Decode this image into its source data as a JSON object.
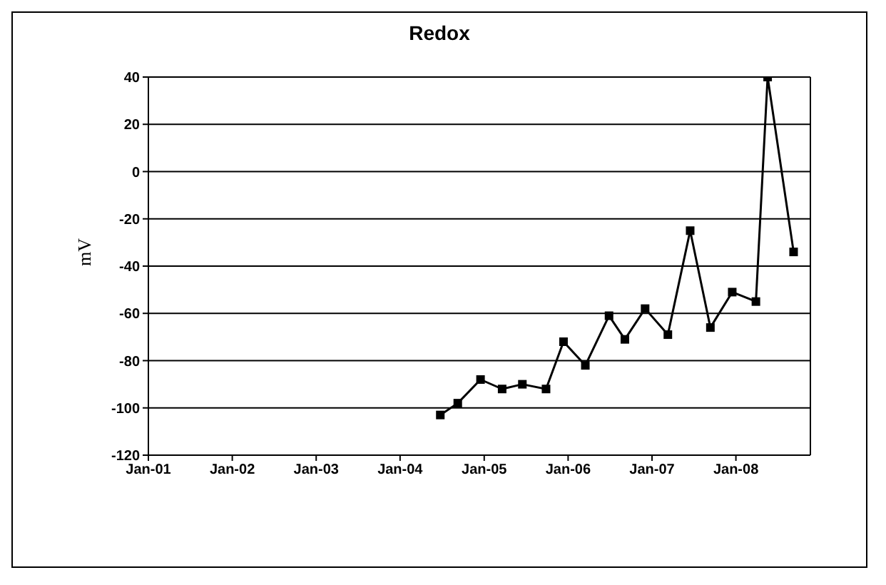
{
  "chart_data": {
    "type": "line",
    "title": "Redox",
    "ylabel": "mV",
    "x": [
      "2004-06-24",
      "2004-09-08",
      "2004-12-16",
      "2005-03-20",
      "2005-06-16",
      "2005-09-27",
      "2005-12-12",
      "2006-03-17",
      "2006-06-28",
      "2006-09-05",
      "2006-12-02",
      "2007-03-11",
      "2007-06-16",
      "2007-09-12",
      "2007-12-16",
      "2008-03-28",
      "2008-05-18",
      "2008-09-08"
    ],
    "series": [
      {
        "color": "#000000",
        "values": [
          -103,
          -98,
          -88,
          -92,
          -90,
          -92,
          -72,
          -82,
          -61,
          -71,
          -58,
          -69,
          -25,
          -66,
          -51,
          -55,
          40,
          -34
        ]
      }
    ],
    "xlim": [
      "2001-01-01",
      "2008-11-20"
    ],
    "xticks": [
      {
        "value": "2001-01",
        "label": "Jan-01"
      },
      {
        "value": "2002-01",
        "label": "Jan-02"
      },
      {
        "value": "2003-01",
        "label": "Jan-03"
      },
      {
        "value": "2004-01",
        "label": "Jan-04"
      },
      {
        "value": "2005-01",
        "label": "Jan-05"
      },
      {
        "value": "2006-01",
        "label": "Jan-06"
      },
      {
        "value": "2007-01",
        "label": "Jan-07"
      },
      {
        "value": "2008-01",
        "label": "Jan-08"
      }
    ],
    "ylim": [
      -120,
      40
    ],
    "yticks": [
      -120,
      -100,
      -80,
      -60,
      -40,
      -20,
      0,
      20,
      40
    ],
    "grid": "y",
    "marker": "square",
    "line_style": "solid"
  }
}
